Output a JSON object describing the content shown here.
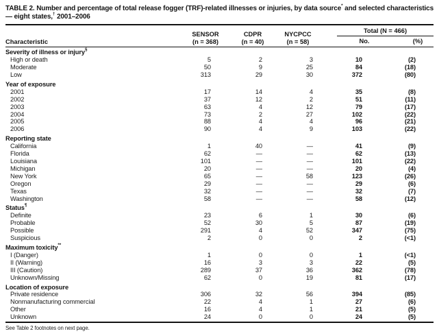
{
  "page": {
    "title": {
      "part1": "TABLE 2. Number and percentage of total release fogger (TRF)-related illnesses or injuries, by data source",
      "sup1": "*",
      "part2": " and selected characteristics — eight states,",
      "sup2": "†",
      "part3": " 2001–2006"
    },
    "footer": "See Table 2 footnotes on next page."
  },
  "table": {
    "col_headers": {
      "characteristic": "Characteristic",
      "sensor_line1": "SENSOR",
      "sensor_line2": "(n = 368)",
      "cdpr_line1": "CDPR",
      "cdpr_line2": "(n = 40)",
      "nycpcc_line1": "NYCPCC",
      "nycpcc_line2": "(n = 58)",
      "total_group": "Total (N = 466)",
      "total_no": "No.",
      "total_pct": "(%)"
    },
    "sections": [
      {
        "header": "Severity of illness or injury",
        "header_sup": "§",
        "rows": [
          {
            "label": "High or death",
            "sensor": "5",
            "cdpr": "2",
            "nycpcc": "3",
            "no": "10",
            "pct": "(2)"
          },
          {
            "label": "Moderate",
            "sensor": "50",
            "cdpr": "9",
            "nycpcc": "25",
            "no": "84",
            "pct": "(18)"
          },
          {
            "label": "Low",
            "sensor": "313",
            "cdpr": "29",
            "nycpcc": "30",
            "no": "372",
            "pct": "(80)"
          }
        ]
      },
      {
        "header": "Year of exposure",
        "header_sup": "",
        "rows": [
          {
            "label": "2001",
            "sensor": "17",
            "cdpr": "14",
            "nycpcc": "4",
            "no": "35",
            "pct": "(8)"
          },
          {
            "label": "2002",
            "sensor": "37",
            "cdpr": "12",
            "nycpcc": "2",
            "no": "51",
            "pct": "(11)"
          },
          {
            "label": "2003",
            "sensor": "63",
            "cdpr": "4",
            "nycpcc": "12",
            "no": "79",
            "pct": "(17)"
          },
          {
            "label": "2004",
            "sensor": "73",
            "cdpr": "2",
            "nycpcc": "27",
            "no": "102",
            "pct": "(22)"
          },
          {
            "label": "2005",
            "sensor": "88",
            "cdpr": "4",
            "nycpcc": "4",
            "no": "96",
            "pct": "(21)"
          },
          {
            "label": "2006",
            "sensor": "90",
            "cdpr": "4",
            "nycpcc": "9",
            "no": "103",
            "pct": "(22)"
          }
        ]
      },
      {
        "header": "Reporting state",
        "header_sup": "",
        "rows": [
          {
            "label": "California",
            "sensor": "1",
            "cdpr": "40",
            "nycpcc": "—",
            "no": "41",
            "pct": "(9)"
          },
          {
            "label": "Florida",
            "sensor": "62",
            "cdpr": "—",
            "nycpcc": "—",
            "no": "62",
            "pct": "(13)"
          },
          {
            "label": "Louisiana",
            "sensor": "101",
            "cdpr": "—",
            "nycpcc": "—",
            "no": "101",
            "pct": "(22)"
          },
          {
            "label": "Michigan",
            "sensor": "20",
            "cdpr": "—",
            "nycpcc": "—",
            "no": "20",
            "pct": "(4)"
          },
          {
            "label": "New York",
            "sensor": "65",
            "cdpr": "—",
            "nycpcc": "58",
            "no": "123",
            "pct": "(26)"
          },
          {
            "label": "Oregon",
            "sensor": "29",
            "cdpr": "—",
            "nycpcc": "—",
            "no": "29",
            "pct": "(6)"
          },
          {
            "label": "Texas",
            "sensor": "32",
            "cdpr": "—",
            "nycpcc": "—",
            "no": "32",
            "pct": "(7)"
          },
          {
            "label": "Washington",
            "sensor": "58",
            "cdpr": "—",
            "nycpcc": "—",
            "no": "58",
            "pct": "(12)"
          }
        ]
      },
      {
        "header": "Status",
        "header_sup": "¶",
        "rows": [
          {
            "label": "Definite",
            "sensor": "23",
            "cdpr": "6",
            "nycpcc": "1",
            "no": "30",
            "pct": "(6)"
          },
          {
            "label": "Probable",
            "sensor": "52",
            "cdpr": "30",
            "nycpcc": "5",
            "no": "87",
            "pct": "(19)"
          },
          {
            "label": "Possible",
            "sensor": "291",
            "cdpr": "4",
            "nycpcc": "52",
            "no": "347",
            "pct": "(75)"
          },
          {
            "label": "Suspicious",
            "sensor": "2",
            "cdpr": "0",
            "nycpcc": "0",
            "no": "2",
            "pct": "(<1)"
          }
        ]
      },
      {
        "header": "Maximum toxicity",
        "header_sup": "**",
        "rows": [
          {
            "label": "I (Danger)",
            "sensor": "1",
            "cdpr": "0",
            "nycpcc": "0",
            "no": "1",
            "pct": "(<1)"
          },
          {
            "label": "II (Warning)",
            "sensor": "16",
            "cdpr": "3",
            "nycpcc": "3",
            "no": "22",
            "pct": "(5)"
          },
          {
            "label": "III (Caution)",
            "sensor": "289",
            "cdpr": "37",
            "nycpcc": "36",
            "no": "362",
            "pct": "(78)"
          },
          {
            "label": "Unknown/Missing",
            "sensor": "62",
            "cdpr": "0",
            "nycpcc": "19",
            "no": "81",
            "pct": "(17)"
          }
        ]
      },
      {
        "header": "Location of exposure",
        "header_sup": "",
        "rows": [
          {
            "label": "Private residence",
            "sensor": "306",
            "cdpr": "32",
            "nycpcc": "56",
            "no": "394",
            "pct": "(85)"
          },
          {
            "label": "Nonmanufacturing commercial",
            "sensor": "22",
            "cdpr": "4",
            "nycpcc": "1",
            "no": "27",
            "pct": "(6)"
          },
          {
            "label": "Other",
            "sensor": "16",
            "cdpr": "4",
            "nycpcc": "1",
            "no": "21",
            "pct": "(5)"
          },
          {
            "label": "Unknown",
            "sensor": "24",
            "cdpr": "0",
            "nycpcc": "0",
            "no": "24",
            "pct": "(5)"
          }
        ]
      }
    ]
  }
}
